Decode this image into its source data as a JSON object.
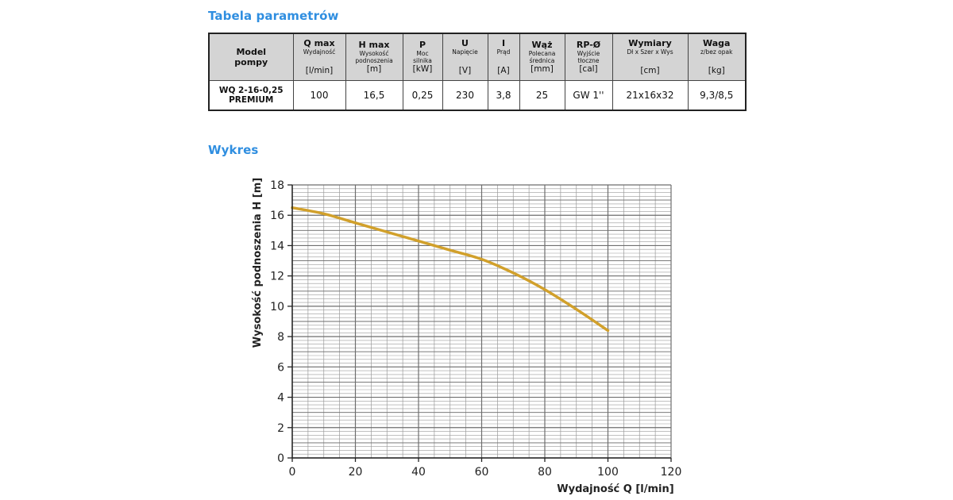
{
  "section_titles": {
    "table": "Tabela parametrów",
    "chart": "Wykres"
  },
  "table": {
    "headers": [
      {
        "lines": [
          "Model",
          "pompy"
        ],
        "desc": [],
        "unit": ""
      },
      {
        "lines": [
          "Q max"
        ],
        "desc": [
          "Wydajność"
        ],
        "unit": "[l/min]"
      },
      {
        "lines": [
          "H max"
        ],
        "desc": [
          "Wysokość",
          "podnoszenia"
        ],
        "unit": "[m]"
      },
      {
        "lines": [
          "P"
        ],
        "desc": [
          "Moc",
          "silnika"
        ],
        "unit": "[kW]"
      },
      {
        "lines": [
          "U"
        ],
        "desc": [
          "Napięcie"
        ],
        "unit": "[V]"
      },
      {
        "lines": [
          "I"
        ],
        "desc": [
          "Prąd"
        ],
        "unit": "[A]"
      },
      {
        "lines": [
          "Wąż"
        ],
        "desc": [
          "Polecana",
          "średnica"
        ],
        "unit": "[mm]"
      },
      {
        "lines": [
          "RP-Ø"
        ],
        "desc": [
          "Wyjście",
          "tłoczne"
        ],
        "unit": "[cal]"
      },
      {
        "lines": [
          "Wymiary"
        ],
        "desc": [
          "Dł x Szer x Wys"
        ],
        "unit": "[cm]"
      },
      {
        "lines": [
          "Waga"
        ],
        "desc": [
          "z/bez opak"
        ],
        "unit": "[kg]"
      }
    ],
    "row": {
      "model": [
        "WQ 2-16-0,25",
        "PREMIUM"
      ],
      "values": [
        "100",
        "16,5",
        "0,25",
        "230",
        "3,8",
        "25",
        "GW 1''",
        "21x16x32",
        "9,3/8,5"
      ]
    }
  },
  "chart_data": {
    "type": "line",
    "title": "",
    "xlabel": "Wydajność Q [l/min]",
    "ylabel": "Wysokość podnoszenia H [m]",
    "xlim": [
      0,
      120
    ],
    "ylim": [
      0,
      18
    ],
    "xticks": [
      0,
      20,
      40,
      60,
      80,
      100,
      120
    ],
    "yticks": [
      0,
      2,
      4,
      6,
      8,
      10,
      12,
      14,
      16,
      18
    ],
    "minor_x_step": 5,
    "minor_y_step": 1,
    "grid": true,
    "legend": "none",
    "colors": {
      "line": "#d1a02b",
      "grid_major": "#6e6e6e",
      "grid_minor": "#9a9a9a"
    },
    "series": [
      {
        "name": "WQ 2-16-0,25 PREMIUM",
        "x": [
          0,
          10,
          20,
          30,
          40,
          50,
          60,
          70,
          80,
          90,
          100
        ],
        "y": [
          16.5,
          16.1,
          15.5,
          14.9,
          14.3,
          13.7,
          13.1,
          12.2,
          11.1,
          9.8,
          8.4
        ]
      }
    ]
  }
}
